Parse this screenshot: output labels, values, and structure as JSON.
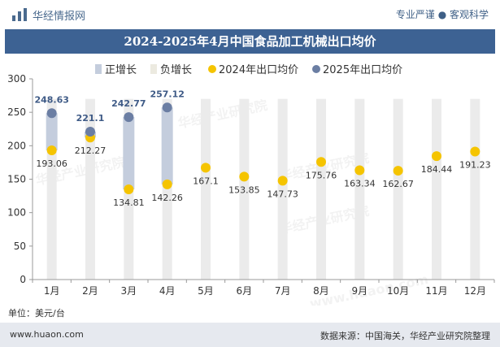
{
  "header": {
    "brand": "华经情报网",
    "tagline": "专业严谨 ● 客观科学"
  },
  "title": "2024-2025年4月中国食品加工机械出口均价",
  "legend": {
    "positive": "正增长",
    "negative": "负增长",
    "series2024": "2024年出口均价",
    "series2025": "2025年出口均价"
  },
  "unit": "单位：美元/台",
  "footer": {
    "url": "www.huaon.com",
    "source": "数据来源：中国海关，华经产业研究院整理"
  },
  "watermark": {
    "text": "华经产业研究院",
    "url": "www.huaon.com"
  },
  "colors": {
    "title_bg": "#3d6293",
    "series2024": "#f5c400",
    "series2025": "#6b7ea3",
    "positive_bar": "#c4cddd",
    "negative_bar": "#eceae0",
    "background_column": "#ebebeb"
  },
  "chart_data": {
    "type": "line",
    "categories": [
      "1月",
      "2月",
      "3月",
      "4月",
      "5月",
      "6月",
      "7月",
      "8月",
      "9月",
      "10月",
      "11月",
      "12月"
    ],
    "series": [
      {
        "name": "2024年出口均价",
        "values": [
          193.06,
          212.27,
          134.81,
          142.26,
          167.1,
          153.85,
          147.73,
          175.76,
          163.34,
          162.67,
          184.44,
          191.23
        ]
      },
      {
        "name": "2025年出口均价",
        "values": [
          248.63,
          221.1,
          242.77,
          257.12,
          null,
          null,
          null,
          null,
          null,
          null,
          null,
          null
        ]
      }
    ],
    "ylim": [
      0,
      300
    ],
    "yticks": [
      0,
      50,
      100,
      150,
      200,
      250,
      300
    ],
    "legend_position": "top",
    "grid": false
  }
}
